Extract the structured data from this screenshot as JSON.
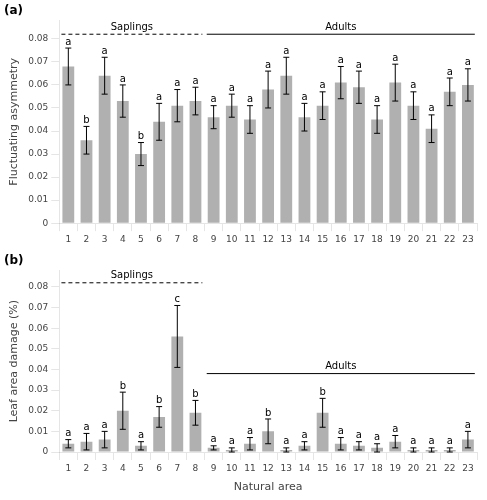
{
  "chart_data": [
    {
      "type": "bar",
      "title": "(a)",
      "categories": [
        1,
        2,
        3,
        4,
        5,
        6,
        7,
        8,
        9,
        10,
        11,
        12,
        13,
        14,
        15,
        16,
        17,
        18,
        19,
        20,
        21,
        22,
        23
      ],
      "values": [
        0.068,
        0.036,
        0.064,
        0.053,
        0.03,
        0.044,
        0.051,
        0.053,
        0.046,
        0.051,
        0.045,
        0.058,
        0.064,
        0.046,
        0.051,
        0.061,
        0.059,
        0.045,
        0.061,
        0.051,
        0.041,
        0.057,
        0.06
      ],
      "errors": [
        0.008,
        0.006,
        0.008,
        0.007,
        0.005,
        0.008,
        0.007,
        0.006,
        0.005,
        0.005,
        0.006,
        0.008,
        0.008,
        0.006,
        0.006,
        0.007,
        0.007,
        0.006,
        0.008,
        0.006,
        0.006,
        0.006,
        0.007
      ],
      "letters": [
        "a",
        "b",
        "a",
        "a",
        "b",
        "a",
        "a",
        "a",
        "a",
        "a",
        "a",
        "a",
        "a",
        "a",
        "a",
        "a",
        "a",
        "a",
        "a",
        "a",
        "a",
        "a",
        "a"
      ],
      "ylabel": "Fluctuating asymmetry",
      "ylim": [
        0,
        0.088
      ],
      "yticks": [
        0,
        0.01,
        0.02,
        0.03,
        0.04,
        0.05,
        0.06,
        0.07,
        0.08
      ],
      "color": "#b0b0b0",
      "grid": false,
      "annotations": [
        {
          "text": "Saplings",
          "from": 1,
          "to": 8,
          "y": 0.082,
          "line_style": "dashed"
        },
        {
          "text": "Adults",
          "from": 9,
          "to": 23,
          "y": 0.082,
          "line_style": "solid"
        }
      ]
    },
    {
      "type": "bar",
      "title": "(b)",
      "categories": [
        1,
        2,
        3,
        4,
        5,
        6,
        7,
        8,
        9,
        10,
        11,
        12,
        13,
        14,
        15,
        16,
        17,
        18,
        19,
        20,
        21,
        22,
        23
      ],
      "values": [
        0.004,
        0.005,
        0.006,
        0.02,
        0.003,
        0.017,
        0.056,
        0.019,
        0.002,
        0.001,
        0.004,
        0.01,
        0.001,
        0.003,
        0.019,
        0.004,
        0.003,
        0.002,
        0.005,
        0.001,
        0.001,
        0.001,
        0.006
      ],
      "errors": [
        0.002,
        0.004,
        0.004,
        0.009,
        0.002,
        0.005,
        0.015,
        0.006,
        0.001,
        0.001,
        0.003,
        0.006,
        0.001,
        0.002,
        0.007,
        0.003,
        0.002,
        0.002,
        0.003,
        0.001,
        0.001,
        0.001,
        0.004
      ],
      "letters": [
        "a",
        "a",
        "a",
        "b",
        "a",
        "b",
        "c",
        "b",
        "a",
        "a",
        "a",
        "b",
        "a",
        "a",
        "b",
        "a",
        "a",
        "a",
        "a",
        "a",
        "a",
        "a",
        "a"
      ],
      "ylabel": "Leaf area damage (%)",
      "xlabel": "Natural area",
      "ylim": [
        0,
        0.088
      ],
      "yticks": [
        0,
        0.01,
        0.02,
        0.03,
        0.04,
        0.05,
        0.06,
        0.07,
        0.08
      ],
      "color": "#b0b0b0",
      "grid": false,
      "annotations": [
        {
          "text": "Saplings",
          "from": 1,
          "to": 8,
          "y": 0.082,
          "line_style": "dashed"
        },
        {
          "text": "Adults",
          "from": 9,
          "to": 23,
          "y": 0.038,
          "line_style": "solid"
        }
      ]
    }
  ]
}
